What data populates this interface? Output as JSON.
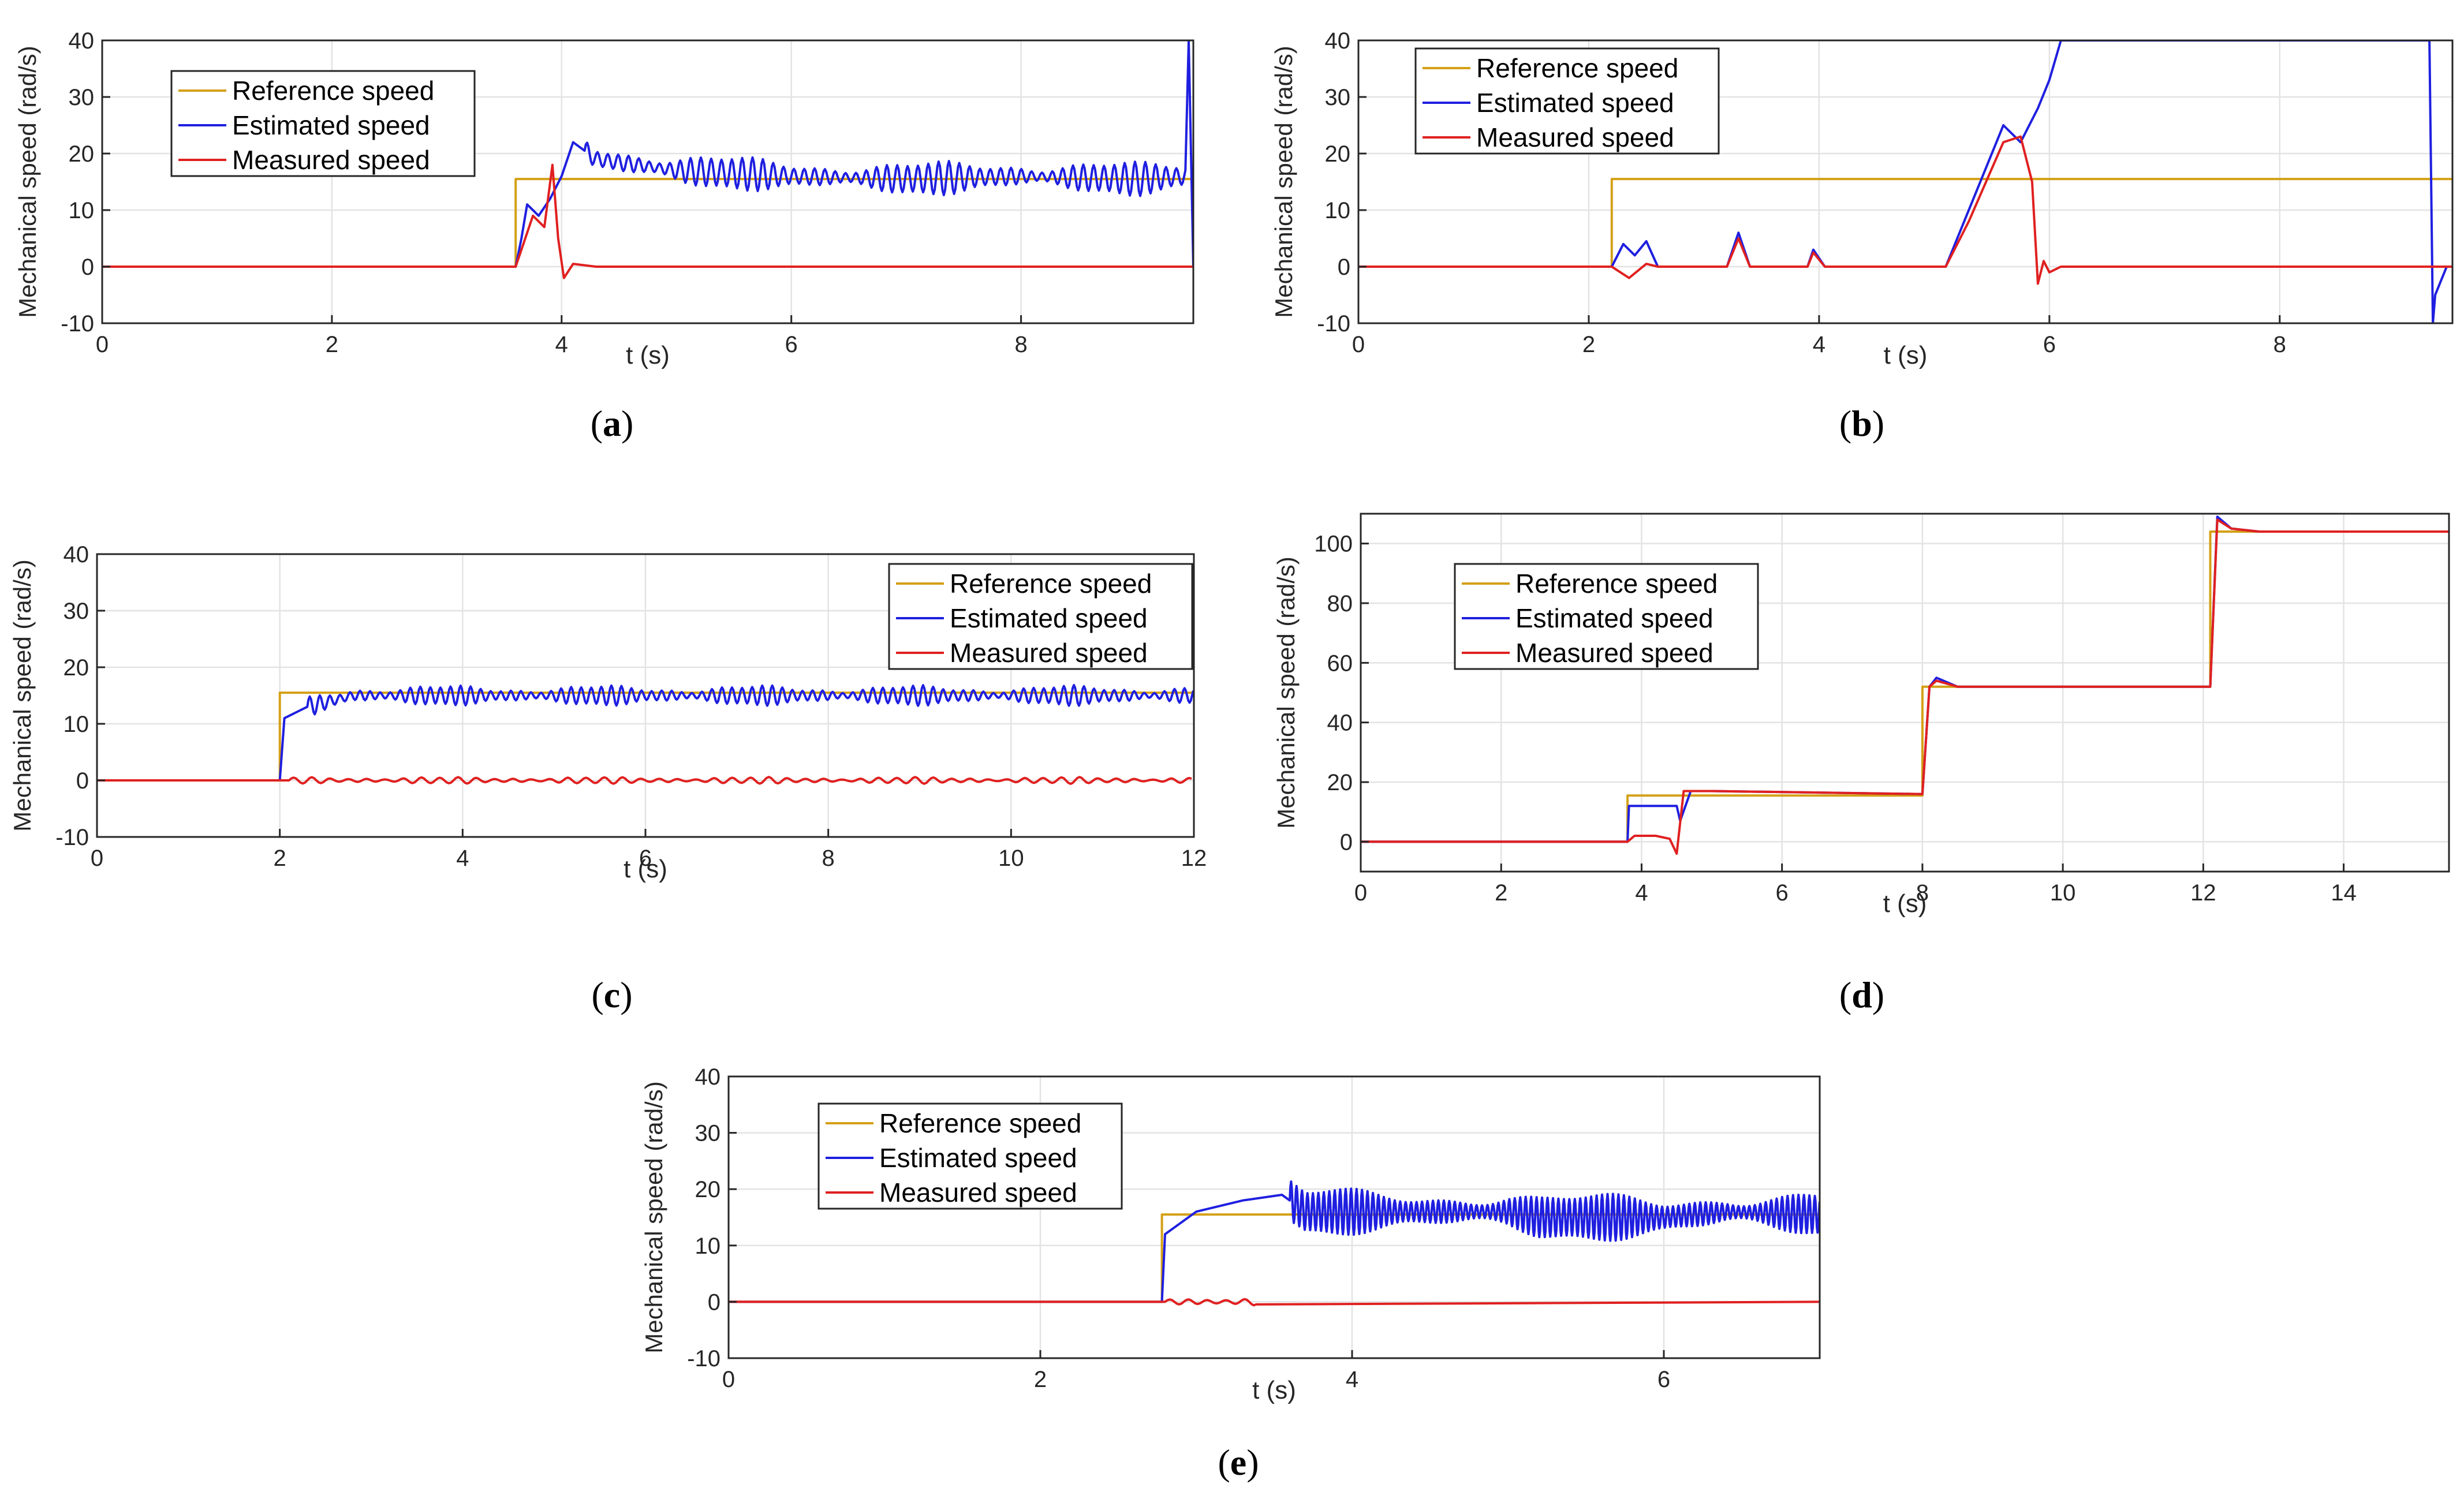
{
  "figure": {
    "colors": {
      "reference": "#D4A017",
      "estimated": "#1F1FE0",
      "measured": "#E02020"
    },
    "legend_labels": [
      "Reference speed",
      "Estimated speed",
      "Measured speed"
    ],
    "xlabel": "t (s)",
    "ylabel": "Mechanical speed (rad/s)"
  },
  "chart_data": [
    {
      "id": "a",
      "type": "line",
      "caption_letter": "a",
      "xlabel": "t (s)",
      "ylabel": "Mechanical speed (rad/s)",
      "xlim": [
        0,
        9.5
      ],
      "ylim": [
        -10,
        40
      ],
      "xticks": [
        0,
        2,
        4,
        6,
        8
      ],
      "yticks": [
        -10,
        0,
        10,
        20,
        30,
        40
      ],
      "legend_position": "top-left",
      "series": [
        {
          "name": "Reference speed",
          "x": [
            0,
            3.6,
            3.6,
            3.9,
            3.9,
            9.5
          ],
          "y": [
            0,
            0,
            15.5,
            15.5,
            15.5,
            15.5
          ]
        },
        {
          "name": "Estimated speed",
          "x": [
            0,
            3.6,
            3.65,
            3.7,
            3.8,
            3.9,
            4.0,
            4.1,
            4.3,
            5.0,
            6.0,
            7.0,
            8.0,
            9.0,
            9.44,
            9.46,
            9.5
          ],
          "y": [
            0,
            0,
            5,
            11,
            9,
            12,
            16,
            22,
            19,
            17,
            16,
            15.5,
            16,
            15.5,
            16,
            40,
            0
          ],
          "osc_amp": 2.5,
          "osc_period": 0.09,
          "osc_start": 4.2,
          "osc_end": 9.44
        },
        {
          "name": "Measured speed",
          "x": [
            0,
            3.6,
            3.65,
            3.75,
            3.85,
            3.92,
            3.97,
            4.02,
            4.1,
            4.3,
            9.5
          ],
          "y": [
            0,
            0,
            3,
            9,
            7,
            18,
            5,
            -2,
            0.5,
            0,
            0
          ]
        }
      ]
    },
    {
      "id": "b",
      "type": "line",
      "caption_letter": "b",
      "xlabel": "t (s)",
      "ylabel": "Mechanical speed (rad/s)",
      "xlim": [
        0,
        9.5
      ],
      "ylim": [
        -10,
        40
      ],
      "xticks": [
        0,
        2,
        4,
        6,
        8
      ],
      "yticks": [
        -10,
        0,
        10,
        20,
        30,
        40
      ],
      "legend_position": "top-left",
      "series": [
        {
          "name": "Reference speed",
          "x": [
            0,
            2.2,
            2.2,
            9.5
          ],
          "y": [
            0,
            0,
            15.5,
            15.5
          ]
        },
        {
          "name": "Estimated speed",
          "x": [
            0,
            2.2,
            2.3,
            2.4,
            2.5,
            2.6,
            3.2,
            3.3,
            3.4,
            3.9,
            3.95,
            4.05,
            5.1,
            5.3,
            5.6,
            5.75,
            5.9,
            6.0,
            6.1,
            9.3,
            9.33,
            9.35,
            9.45,
            9.5
          ],
          "y": [
            0,
            0,
            4,
            2,
            4.5,
            0,
            0,
            6,
            0,
            0,
            3,
            0,
            0,
            10,
            25,
            22,
            28,
            33,
            40,
            40,
            -10,
            -5,
            0,
            0
          ]
        },
        {
          "name": "Measured speed",
          "x": [
            0,
            2.2,
            2.35,
            2.5,
            2.6,
            3.2,
            3.3,
            3.4,
            3.9,
            3.95,
            4.05,
            5.1,
            5.3,
            5.6,
            5.75,
            5.85,
            5.9,
            5.95,
            6.0,
            6.1,
            9.5
          ],
          "y": [
            0,
            0,
            -2,
            0.5,
            0,
            0,
            5,
            0,
            0,
            2.5,
            0,
            0,
            8,
            22,
            23,
            15,
            -3,
            1,
            -1,
            0,
            0
          ]
        }
      ]
    },
    {
      "id": "c",
      "type": "line",
      "caption_letter": "c",
      "xlabel": "t (s)",
      "ylabel": "Mechanical speed (rad/s)",
      "xlim": [
        0,
        12
      ],
      "ylim": [
        -10,
        40
      ],
      "xticks": [
        0,
        2,
        4,
        6,
        8,
        10,
        12
      ],
      "yticks": [
        -10,
        0,
        10,
        20,
        30,
        40
      ],
      "legend_position": "top-right",
      "series": [
        {
          "name": "Reference speed",
          "x": [
            0,
            2.0,
            2.0,
            12
          ],
          "y": [
            0,
            0,
            15.5,
            15.5
          ]
        },
        {
          "name": "Estimated speed",
          "x": [
            0,
            2.0,
            2.05,
            2.3,
            2.8,
            12
          ],
          "y": [
            0,
            0,
            11,
            13,
            15,
            15
          ],
          "osc_amp": 1.5,
          "osc_period": 0.11,
          "osc_start": 2.3,
          "osc_end": 12
        },
        {
          "name": "Measured speed",
          "x": [
            0,
            2.0,
            12
          ],
          "y": [
            0,
            0,
            0
          ],
          "osc_amp": 0.5,
          "osc_period": 0.2,
          "osc_start": 2.1,
          "osc_end": 12
        }
      ]
    },
    {
      "id": "d",
      "type": "line",
      "caption_letter": "d",
      "xlabel": "t (s)",
      "ylabel": "Mechanical speed (rad/s)",
      "xlim": [
        0,
        15.5
      ],
      "ylim": [
        -10,
        110
      ],
      "xticks": [
        0,
        2,
        4,
        6,
        8,
        10,
        12,
        14
      ],
      "yticks": [
        0,
        20,
        40,
        60,
        80,
        100
      ],
      "legend_position": "top-left",
      "series": [
        {
          "name": "Reference speed",
          "x": [
            0,
            3.8,
            3.8,
            8.0,
            8.0,
            12.1,
            12.1,
            15.5
          ],
          "y": [
            0,
            0,
            15.5,
            15.5,
            52,
            52,
            104,
            104
          ]
        },
        {
          "name": "Estimated speed",
          "x": [
            0,
            3.8,
            3.82,
            4.5,
            4.55,
            4.7,
            5.0,
            8.0,
            8.1,
            8.2,
            8.5,
            9.0,
            12.1,
            12.2,
            12.4,
            12.8,
            15.5
          ],
          "y": [
            0,
            0,
            12,
            12,
            7,
            17,
            17,
            16,
            52,
            55,
            52,
            52,
            52,
            109,
            105,
            104,
            104
          ]
        },
        {
          "name": "Measured speed",
          "x": [
            0,
            3.8,
            3.9,
            4.2,
            4.4,
            4.5,
            4.6,
            4.7,
            5.0,
            8.0,
            8.1,
            8.2,
            8.5,
            9.0,
            12.1,
            12.2,
            12.4,
            12.8,
            15.5
          ],
          "y": [
            0,
            0,
            2,
            2,
            1,
            -4,
            17,
            17,
            17,
            16,
            52,
            54,
            52,
            52,
            52,
            108,
            105,
            104,
            104
          ]
        }
      ]
    },
    {
      "id": "e",
      "type": "line",
      "caption_letter": "e",
      "xlabel": "t (s)",
      "ylabel": "Mechanical speed (rad/s)",
      "xlim": [
        0,
        7
      ],
      "ylim": [
        -10,
        40
      ],
      "xticks": [
        0,
        2,
        4,
        6
      ],
      "yticks": [
        -10,
        0,
        10,
        20,
        30,
        40
      ],
      "legend_position": "top-left",
      "series": [
        {
          "name": "Reference speed",
          "x": [
            0,
            2.78,
            2.78,
            7
          ],
          "y": [
            0,
            0,
            15.5,
            15.5
          ]
        },
        {
          "name": "Estimated speed",
          "x": [
            0,
            2.78,
            2.8,
            3.0,
            3.3,
            3.55,
            3.7,
            5.0,
            5.2,
            6.0,
            6.4,
            7.0
          ],
          "y": [
            0,
            0,
            12,
            16,
            18,
            19,
            16,
            16,
            15,
            15,
            16,
            15.5
          ],
          "osc_amp": 3.5,
          "osc_period": 0.035,
          "osc_start": 3.6,
          "osc_end": 7
        },
        {
          "name": "Measured speed",
          "x": [
            0,
            2.78,
            3.4,
            7
          ],
          "y": [
            0,
            0,
            0,
            0
          ],
          "osc_amp": 0.8,
          "osc_period": 0.12,
          "osc_start": 2.8,
          "osc_end": 3.4
        }
      ]
    }
  ]
}
